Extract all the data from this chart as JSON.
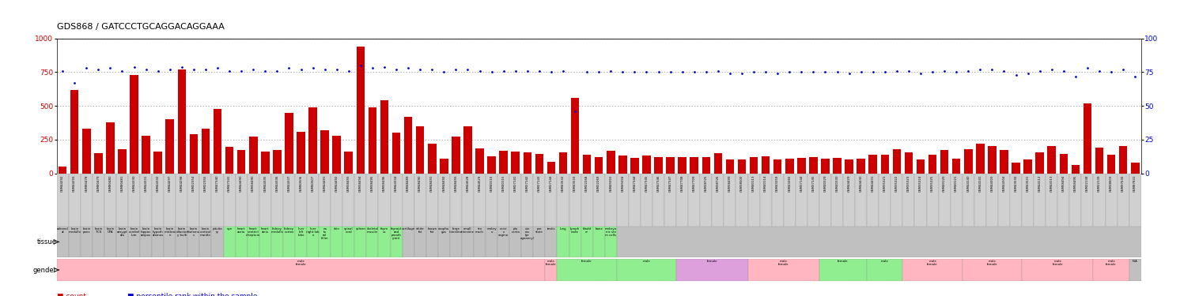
{
  "title": "GDS868 / GATCCCTGCAGGACAGGAAA",
  "bar_color": "#cc0000",
  "dot_color": "#0000cc",
  "ylim_left": [
    0,
    1000
  ],
  "ylim_right": [
    0,
    100
  ],
  "yticks_left": [
    0,
    250,
    500,
    750,
    1000
  ],
  "yticks_right": [
    0,
    25,
    50,
    75,
    100
  ],
  "n_samples": 91,
  "bg_color": "#ffffff",
  "samples": [
    "GSM44292",
    "GSM44293",
    "GSM80478",
    "GSM80479",
    "GSM80480",
    "GSM80481",
    "GSM44330",
    "GSM44331",
    "GSM44332",
    "GSM44297",
    "GSM44298",
    "GSM22354",
    "GSM22355",
    "GSM47340",
    "GSM47341",
    "GSM44490",
    "GSM38490",
    "GSM44335",
    "GSM44336",
    "GSM44337",
    "GSM60506",
    "GSM60507",
    "GSM44491",
    "GSM44492",
    "GSM38493",
    "GSM38494",
    "GSM38495",
    "GSM38496",
    "GSM44334",
    "GSM48489",
    "GSM48490",
    "GSM48491",
    "GSM48492",
    "GSM48493",
    "GSM44528",
    "GSM44529",
    "GSM40116",
    "GSM40115",
    "GSM27141",
    "GSM27142",
    "GSM27143",
    "GSM27144",
    "GSM43532",
    "GSM43533",
    "GSM22268",
    "GSM22269",
    "GSM45593",
    "GSM45594",
    "GSM47344",
    "GSM47345",
    "GSM47346",
    "GSM47347",
    "GSM47708",
    "GSM47709",
    "GSM38725",
    "GSM38726",
    "GSM38499",
    "GSM38500",
    "GSM40113",
    "GSM40114",
    "GSM43259",
    "GSM43260",
    "GSM37144",
    "GSM37145",
    "GSM40329",
    "GSM40330",
    "GSM44429",
    "GSM44430",
    "GSM44431",
    "GSM35321",
    "GSM35322",
    "GSM35323",
    "GSM35324",
    "GSM35325",
    "GSM40120",
    "GSM40121",
    "GSM44140",
    "GSM44141",
    "GSM44303",
    "GSM44304",
    "GSM43530",
    "GSM43531",
    "GSM44112",
    "GSM44113",
    "GSM58494",
    "GSM58495",
    "GSM22138",
    "GSM22139",
    "GSM38603",
    "GSM97630",
    "GSM87831"
  ],
  "bar_heights": [
    50,
    620,
    330,
    150,
    380,
    180,
    730,
    280,
    160,
    400,
    770,
    290,
    330,
    480,
    195,
    175,
    270,
    160,
    170,
    450,
    310,
    490,
    320,
    280,
    160,
    940,
    490,
    540,
    300,
    420,
    350,
    220,
    110,
    270,
    350,
    185,
    125,
    165,
    160,
    155,
    145,
    85,
    155,
    560,
    140,
    120,
    165,
    130,
    115,
    130,
    120,
    120,
    120,
    120,
    120,
    150,
    105,
    100,
    118,
    125,
    100,
    110,
    115,
    120,
    110,
    115,
    100,
    108,
    135,
    140,
    180,
    155,
    105,
    140,
    170,
    110,
    180,
    220,
    200,
    170,
    80,
    100,
    155,
    200,
    145,
    60,
    520,
    190,
    135,
    200,
    80
  ],
  "dot_percentiles": [
    76,
    67,
    78,
    77,
    78,
    76,
    79,
    77,
    76,
    77,
    79,
    77,
    77,
    78,
    76,
    76,
    77,
    76,
    76,
    78,
    77,
    78,
    77,
    77,
    76,
    80,
    78,
    79,
    77,
    78,
    77,
    77,
    75,
    77,
    77,
    76,
    75,
    76,
    76,
    76,
    76,
    75,
    76,
    46,
    75,
    75,
    76,
    75,
    75,
    75,
    75,
    75,
    75,
    75,
    75,
    76,
    74,
    74,
    75,
    75,
    74,
    75,
    75,
    75,
    75,
    75,
    74,
    75,
    75,
    75,
    76,
    76,
    74,
    75,
    76,
    75,
    76,
    77,
    77,
    76,
    73,
    74,
    76,
    77,
    76,
    72,
    78,
    76,
    75,
    77,
    72
  ],
  "tissue_spans": [
    [
      0,
      0,
      "adrenal\nal",
      "#c0c0c0"
    ],
    [
      1,
      1,
      "brain\nmedulla",
      "#c0c0c0"
    ],
    [
      2,
      2,
      "brain\npons",
      "#c0c0c0"
    ],
    [
      3,
      3,
      "brain\nTCS",
      "#c0c0c0"
    ],
    [
      4,
      4,
      "brain\nCPA",
      "#c0c0c0"
    ],
    [
      5,
      5,
      "brain\namygd\nala",
      "#c0c0c0"
    ],
    [
      6,
      6,
      "brain\ncerebel\nlum",
      "#c0c0c0"
    ],
    [
      7,
      7,
      "brain\nhippoc\nampus",
      "#c0c0c0"
    ],
    [
      8,
      8,
      "brain\nhypoth\nalamus",
      "#c0c0c0"
    ],
    [
      9,
      9,
      "brain\nmidbrai\nn",
      "#c0c0c0"
    ],
    [
      10,
      10,
      "brain\nolfactor\ny bulb",
      "#c0c0c0"
    ],
    [
      11,
      11,
      "brain\nthalamu\ns",
      "#c0c0c0"
    ],
    [
      12,
      12,
      "brain\ncortical\nmantle",
      "#c0c0c0"
    ],
    [
      13,
      13,
      "pituita\nry",
      "#c0c0c0"
    ],
    [
      14,
      14,
      "eye",
      "#90EE90"
    ],
    [
      15,
      15,
      "heart\naorta",
      "#90EE90"
    ],
    [
      16,
      16,
      "heart\nventricl\ne/septum",
      "#90EE90"
    ],
    [
      17,
      17,
      "heart\natria",
      "#90EE90"
    ],
    [
      18,
      18,
      "kidney\nmedulla",
      "#90EE90"
    ],
    [
      19,
      19,
      "kidney\ncortex",
      "#90EE90"
    ],
    [
      20,
      20,
      "liver\nleft\nlobe",
      "#90EE90"
    ],
    [
      21,
      21,
      "liver\nright lob\ne",
      "#90EE90"
    ],
    [
      22,
      22,
      "na\ntu\nral\nkiller",
      "#90EE90"
    ],
    [
      23,
      23,
      "skin",
      "#90EE90"
    ],
    [
      24,
      24,
      "spinal\ncord",
      "#90EE90"
    ],
    [
      25,
      25,
      "spleen",
      "#90EE90"
    ],
    [
      26,
      26,
      "skeletal\nmuscle",
      "#90EE90"
    ],
    [
      27,
      27,
      "thym\nus",
      "#90EE90"
    ],
    [
      28,
      28,
      "thyroid\nand\nparath\nyroid",
      "#90EE90"
    ],
    [
      29,
      29,
      "cartilage",
      "#c0c0c0"
    ],
    [
      30,
      30,
      "white\nfat",
      "#c0c0c0"
    ],
    [
      31,
      31,
      "brown\nfat",
      "#c0c0c0"
    ],
    [
      32,
      32,
      "esopha\ngus",
      "#c0c0c0"
    ],
    [
      33,
      33,
      "large\nintestine",
      "#c0c0c0"
    ],
    [
      34,
      34,
      "small\nintestine",
      "#c0c0c0"
    ],
    [
      35,
      35,
      "sto\nmach",
      "#c0c0c0"
    ],
    [
      36,
      36,
      "embry\no",
      "#c0c0c0"
    ],
    [
      37,
      37,
      "cervi\nx\nvagina",
      "#c0c0c0"
    ],
    [
      38,
      38,
      "pla\ncenta",
      "#c0c0c0"
    ],
    [
      39,
      39,
      "ute\nrus\n(pr\negnancy)",
      "#c0c0c0"
    ],
    [
      40,
      40,
      "pro\nstate",
      "#c0c0c0"
    ],
    [
      41,
      41,
      "testis",
      "#c0c0c0"
    ],
    [
      42,
      42,
      "lung",
      "#90EE90"
    ],
    [
      43,
      43,
      "lymph\nnode",
      "#90EE90"
    ],
    [
      44,
      44,
      "bladd\ner",
      "#90EE90"
    ],
    [
      45,
      45,
      "bone",
      "#90EE90"
    ],
    [
      46,
      46,
      "embryo\nnic ste\nm cells",
      "#90EE90"
    ],
    [
      47,
      90,
      "",
      "#c0c0c0"
    ]
  ],
  "gender_spans": [
    [
      0,
      40,
      "male\nfemale",
      "#FFB6C1"
    ],
    [
      41,
      41,
      "male\nfemale",
      "#FFB6C1"
    ],
    [
      42,
      46,
      "female",
      "#90EE90"
    ],
    [
      47,
      51,
      "male",
      "#90EE90"
    ],
    [
      52,
      57,
      "female",
      "#DDA0DD"
    ],
    [
      58,
      63,
      "male\nfemale",
      "#FFB6C1"
    ],
    [
      64,
      67,
      "female",
      "#90EE90"
    ],
    [
      68,
      70,
      "male",
      "#90EE90"
    ],
    [
      71,
      75,
      "male\nfemale",
      "#FFB6C1"
    ],
    [
      76,
      80,
      "male\nfemale",
      "#FFB6C1"
    ],
    [
      81,
      86,
      "male\nfemale",
      "#FFB6C1"
    ],
    [
      87,
      89,
      "male\nfemale",
      "#FFB6C1"
    ],
    [
      90,
      90,
      "N/A",
      "#c0c0c0"
    ]
  ]
}
